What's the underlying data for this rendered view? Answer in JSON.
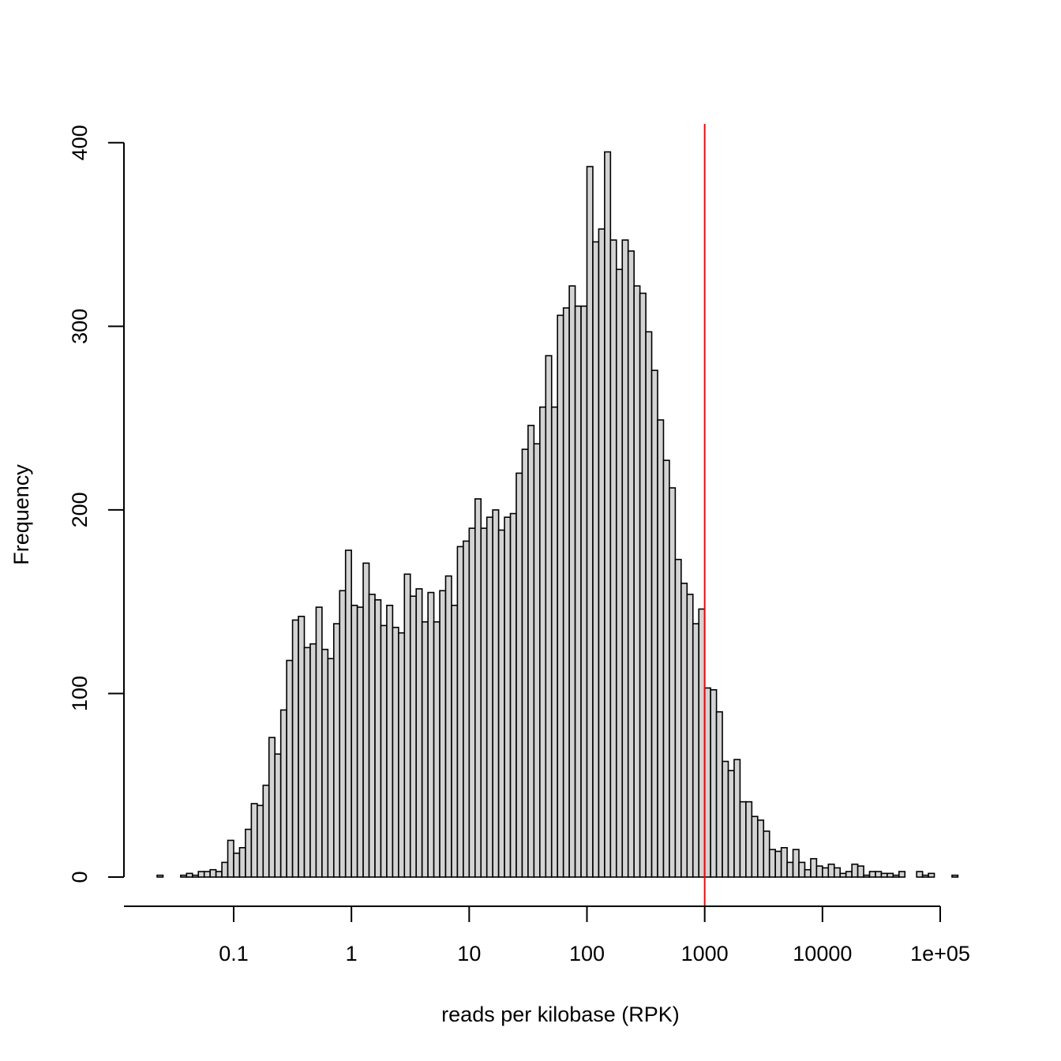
{
  "chart_data": {
    "type": "bar",
    "title": "",
    "xlabel": "reads per kilobase (RPK)",
    "ylabel": "Frequency",
    "x_scale": "log10",
    "xlim": [
      0.012,
      170000
    ],
    "ylim": [
      0,
      410
    ],
    "x_ticks": [
      {
        "value": 0.1,
        "label": "0.1"
      },
      {
        "value": 1,
        "label": "1"
      },
      {
        "value": 10,
        "label": "10"
      },
      {
        "value": 100,
        "label": "100"
      },
      {
        "value": 1000,
        "label": "1000"
      },
      {
        "value": 10000,
        "label": "10000"
      },
      {
        "value": 100000,
        "label": "1e+05"
      }
    ],
    "y_ticks": [
      {
        "value": 0,
        "label": "0"
      },
      {
        "value": 100,
        "label": "100"
      },
      {
        "value": 200,
        "label": "200"
      },
      {
        "value": 300,
        "label": "300"
      },
      {
        "value": 400,
        "label": "400"
      }
    ],
    "bin_width_log10": 0.05,
    "first_bin_log10_start": -1.65,
    "counts": [
      1,
      0,
      0,
      0,
      1,
      2,
      1,
      3,
      3,
      4,
      3,
      8,
      20,
      13,
      16,
      26,
      40,
      39,
      50,
      76,
      67,
      91,
      118,
      140,
      142,
      125,
      127,
      147,
      124,
      119,
      138,
      156,
      178,
      148,
      147,
      171,
      154,
      151,
      137,
      148,
      136,
      133,
      165,
      153,
      157,
      139,
      155,
      139,
      156,
      164,
      148,
      180,
      183,
      190,
      206,
      190,
      196,
      200,
      189,
      196,
      198,
      220,
      233,
      246,
      236,
      256,
      284,
      256,
      306,
      310,
      322,
      311,
      311,
      387,
      346,
      353,
      395,
      347,
      331,
      347,
      341,
      322,
      318,
      297,
      276,
      249,
      227,
      212,
      173,
      160,
      154,
      138,
      146,
      103,
      102,
      90,
      63,
      58,
      64,
      41,
      41,
      33,
      31,
      25,
      15,
      14,
      16,
      8,
      15,
      8,
      4,
      10,
      6,
      5,
      7,
      5,
      2,
      3,
      7,
      6,
      1,
      3,
      3,
      2,
      2,
      1,
      3,
      0,
      0,
      3,
      1,
      2,
      0,
      0,
      0,
      1
    ],
    "reference_line": {
      "value": 1000,
      "color": "#ff0000"
    },
    "bar_fill": "#d3d3d3",
    "bar_stroke": "#000000",
    "grid": false,
    "legend": "none"
  }
}
